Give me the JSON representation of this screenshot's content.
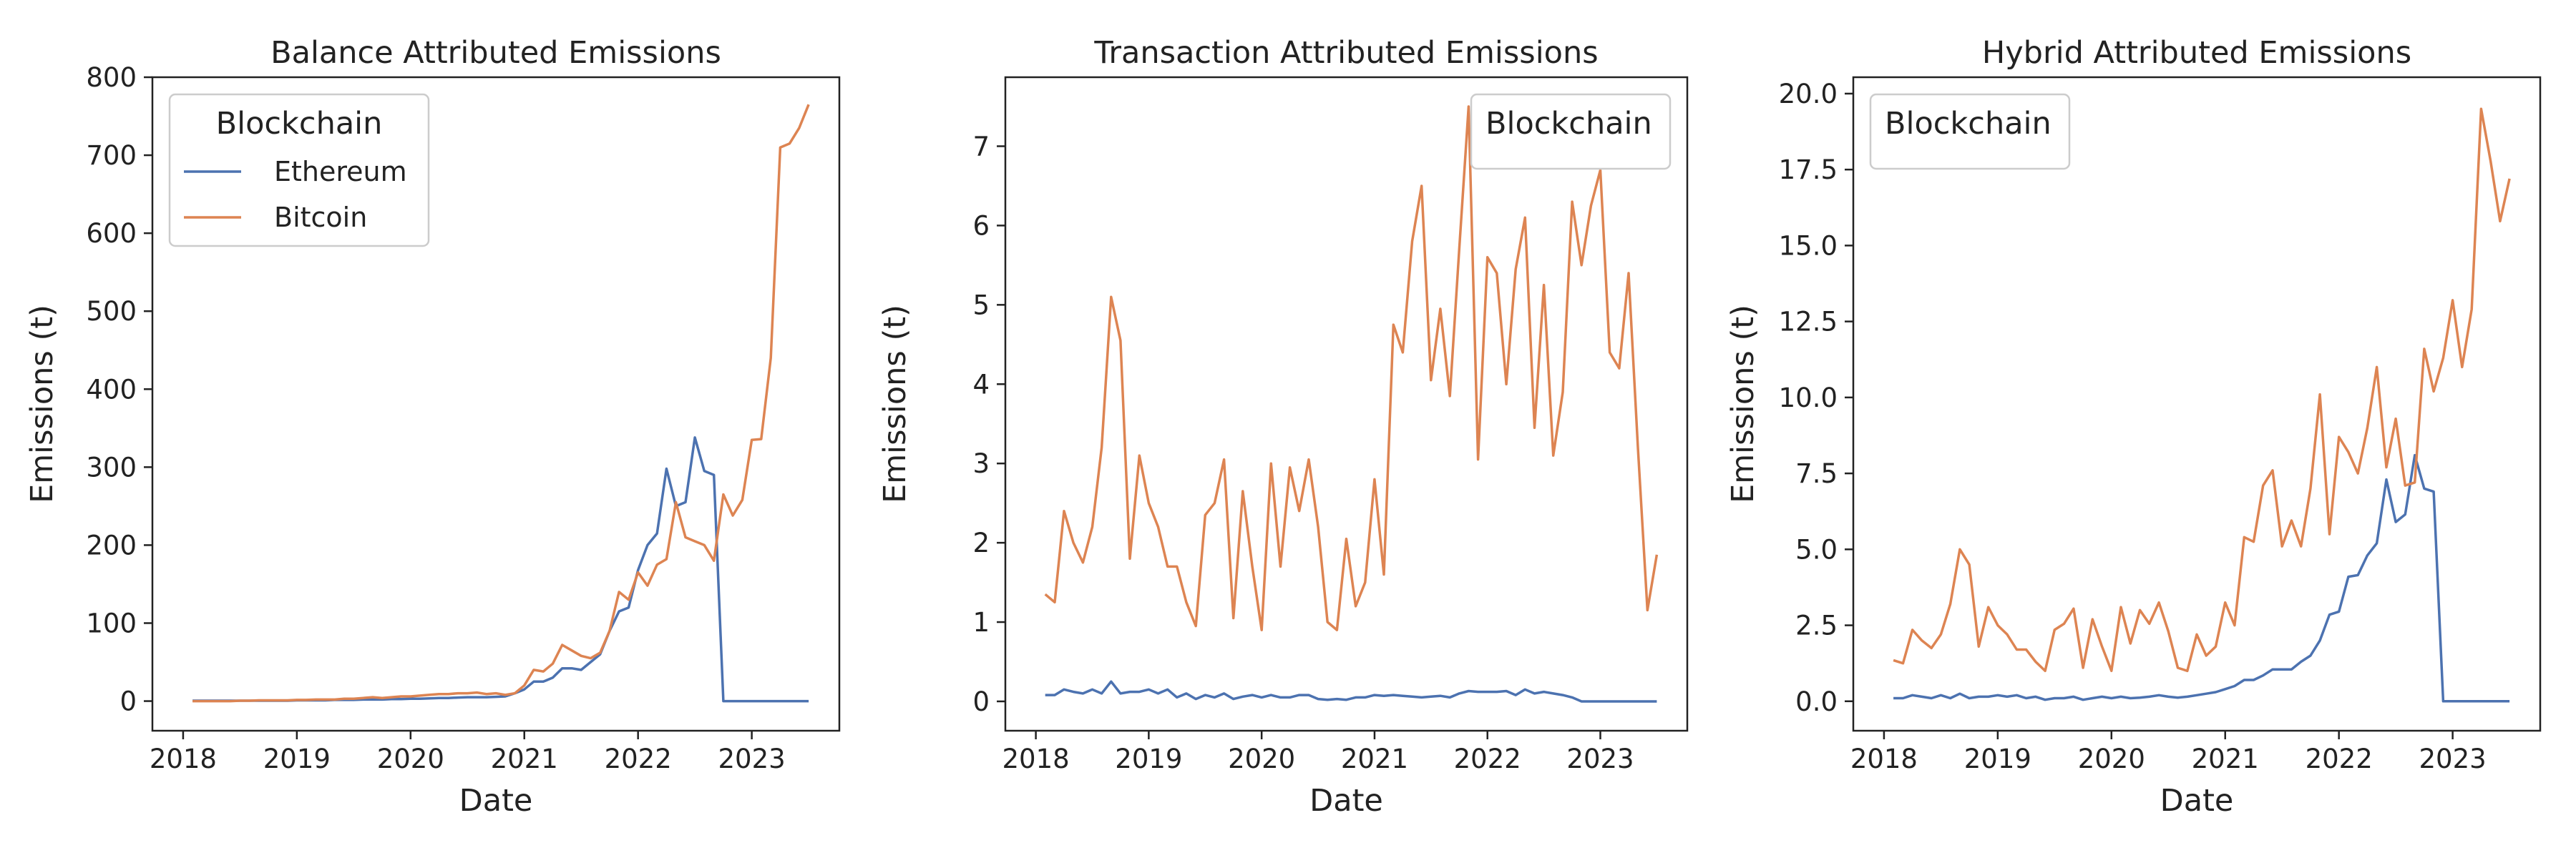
{
  "chart_data": [
    {
      "type": "line",
      "title": "Balance Attributed Emissions",
      "xlabel": "Date",
      "ylabel": "Emissions (t)",
      "x": [
        2018.083,
        2018.167,
        2018.25,
        2018.333,
        2018.417,
        2018.5,
        2018.583,
        2018.667,
        2018.75,
        2018.833,
        2018.917,
        2019,
        2019.083,
        2019.167,
        2019.25,
        2019.333,
        2019.417,
        2019.5,
        2019.583,
        2019.667,
        2019.75,
        2019.833,
        2019.917,
        2020,
        2020.083,
        2020.167,
        2020.25,
        2020.333,
        2020.417,
        2020.5,
        2020.583,
        2020.667,
        2020.75,
        2020.833,
        2020.917,
        2021,
        2021.083,
        2021.167,
        2021.25,
        2021.333,
        2021.417,
        2021.5,
        2021.583,
        2021.667,
        2021.75,
        2021.833,
        2021.917,
        2022,
        2022.083,
        2022.167,
        2022.25,
        2022.333,
        2022.417,
        2022.5,
        2022.583,
        2022.667,
        2022.75,
        2022.833,
        2022.917,
        2023,
        2023.083,
        2023.167,
        2023.25,
        2023.333,
        2023.417,
        2023.5
      ],
      "series": [
        {
          "name": "Ethereum",
          "color": "#4c72b0",
          "values": [
            0.5,
            0.5,
            0.5,
            0.5,
            0.5,
            0.5,
            0.5,
            0.5,
            0.5,
            0.5,
            0.5,
            1,
            1,
            1,
            1,
            1.5,
            1.5,
            1.5,
            2,
            2,
            2,
            2.5,
            2.5,
            3,
            3,
            3.5,
            4,
            4,
            4.5,
            5,
            5,
            5,
            5.5,
            6,
            10,
            15,
            25,
            25,
            30,
            42,
            42,
            40,
            50,
            60,
            90,
            115,
            120,
            168,
            200,
            215,
            298,
            250,
            255,
            338,
            295,
            290,
            0,
            0,
            0,
            0,
            0,
            0,
            0,
            0,
            0,
            0
          ]
        },
        {
          "name": "Bitcoin",
          "color": "#dd8452",
          "values": [
            0,
            0,
            0,
            0,
            0,
            0.5,
            0.5,
            1,
            1,
            1,
            1,
            1.5,
            1.5,
            2,
            2,
            2,
            3,
            3,
            4,
            5,
            4,
            5,
            6,
            6,
            7,
            8,
            9,
            9,
            10,
            10,
            11,
            9,
            10,
            8,
            10,
            20,
            40,
            38,
            48,
            72,
            65,
            58,
            55,
            62,
            90,
            140,
            130,
            165,
            148,
            175,
            182,
            255,
            210,
            205,
            200,
            180,
            265,
            238,
            258,
            335,
            336,
            440,
            710,
            715,
            735,
            765
          ]
        }
      ],
      "xlim": [
        2017.73,
        2023.77
      ],
      "xticks": [
        2018,
        2019,
        2020,
        2021,
        2022,
        2023
      ],
      "ylim": [
        -38,
        800
      ],
      "yticks": [
        0,
        100,
        200,
        300,
        400,
        500,
        600,
        700,
        800
      ],
      "legend": {
        "title": "Blockchain",
        "loc": "upper left",
        "show_entries": true
      }
    },
    {
      "type": "line",
      "title": "Transaction Attributed Emissions",
      "xlabel": "Date",
      "ylabel": "Emissions (t)",
      "x": [
        2018.083,
        2018.167,
        2018.25,
        2018.333,
        2018.417,
        2018.5,
        2018.583,
        2018.667,
        2018.75,
        2018.833,
        2018.917,
        2019,
        2019.083,
        2019.167,
        2019.25,
        2019.333,
        2019.417,
        2019.5,
        2019.583,
        2019.667,
        2019.75,
        2019.833,
        2019.917,
        2020,
        2020.083,
        2020.167,
        2020.25,
        2020.333,
        2020.417,
        2020.5,
        2020.583,
        2020.667,
        2020.75,
        2020.833,
        2020.917,
        2021,
        2021.083,
        2021.167,
        2021.25,
        2021.333,
        2021.417,
        2021.5,
        2021.583,
        2021.667,
        2021.75,
        2021.833,
        2021.917,
        2022,
        2022.083,
        2022.167,
        2022.25,
        2022.333,
        2022.417,
        2022.5,
        2022.583,
        2022.667,
        2022.75,
        2022.833,
        2022.917,
        2023,
        2023.083,
        2023.167,
        2023.25,
        2023.333,
        2023.417,
        2023.5
      ],
      "series": [
        {
          "name": "Ethereum",
          "color": "#4c72b0",
          "values": [
            0.08,
            0.08,
            0.15,
            0.12,
            0.1,
            0.15,
            0.1,
            0.25,
            0.1,
            0.12,
            0.12,
            0.15,
            0.1,
            0.15,
            0.05,
            0.1,
            0.03,
            0.08,
            0.05,
            0.1,
            0.03,
            0.06,
            0.08,
            0.05,
            0.08,
            0.05,
            0.05,
            0.08,
            0.08,
            0.03,
            0.02,
            0.03,
            0.02,
            0.05,
            0.05,
            0.08,
            0.07,
            0.08,
            0.07,
            0.06,
            0.05,
            0.06,
            0.07,
            0.05,
            0.1,
            0.13,
            0.12,
            0.12,
            0.12,
            0.13,
            0.08,
            0.15,
            0.1,
            0.12,
            0.1,
            0.08,
            0.05,
            0,
            0,
            0,
            0,
            0,
            0,
            0,
            0,
            0
          ]
        },
        {
          "name": "Bitcoin",
          "color": "#dd8452",
          "values": [
            1.35,
            1.25,
            2.4,
            2.0,
            1.75,
            2.2,
            3.2,
            5.1,
            4.55,
            1.8,
            3.1,
            2.5,
            2.2,
            1.7,
            1.7,
            1.25,
            0.95,
            2.35,
            2.5,
            3.05,
            1.05,
            2.65,
            1.7,
            0.9,
            3.0,
            1.7,
            2.95,
            2.4,
            3.05,
            2.2,
            1.0,
            0.9,
            2.05,
            1.2,
            1.5,
            2.8,
            1.6,
            4.75,
            4.4,
            5.8,
            6.5,
            4.05,
            4.95,
            3.85,
            5.7,
            7.5,
            3.05,
            5.6,
            5.4,
            4.0,
            5.45,
            6.1,
            3.45,
            5.25,
            3.1,
            3.9,
            6.3,
            5.5,
            6.25,
            6.7,
            4.4,
            4.2,
            5.4,
            3.2,
            1.15,
            1.85
          ]
        }
      ],
      "xlim": [
        2017.73,
        2023.77
      ],
      "xticks": [
        2018,
        2019,
        2020,
        2021,
        2022,
        2023
      ],
      "ylim": [
        -0.37,
        7.87
      ],
      "yticks": [
        0,
        1,
        2,
        3,
        4,
        5,
        6,
        7
      ],
      "legend": {
        "title": "Blockchain",
        "loc": "upper right",
        "show_entries": false
      }
    },
    {
      "type": "line",
      "title": "Hybrid Attributed Emissions",
      "xlabel": "Date",
      "ylabel": "Emissions (t)",
      "x": [
        2018.083,
        2018.167,
        2018.25,
        2018.333,
        2018.417,
        2018.5,
        2018.583,
        2018.667,
        2018.75,
        2018.833,
        2018.917,
        2019,
        2019.083,
        2019.167,
        2019.25,
        2019.333,
        2019.417,
        2019.5,
        2019.583,
        2019.667,
        2019.75,
        2019.833,
        2019.917,
        2020,
        2020.083,
        2020.167,
        2020.25,
        2020.333,
        2020.417,
        2020.5,
        2020.583,
        2020.667,
        2020.75,
        2020.833,
        2020.917,
        2021,
        2021.083,
        2021.167,
        2021.25,
        2021.333,
        2021.417,
        2021.5,
        2021.583,
        2021.667,
        2021.75,
        2021.833,
        2021.917,
        2022,
        2022.083,
        2022.167,
        2022.25,
        2022.333,
        2022.417,
        2022.5,
        2022.583,
        2022.667,
        2022.75,
        2022.833,
        2022.917,
        2023,
        2023.083,
        2023.167,
        2023.25,
        2023.333,
        2023.417,
        2023.5
      ],
      "series": [
        {
          "name": "Ethereum",
          "color": "#4c72b0",
          "values": [
            0.1,
            0.1,
            0.2,
            0.15,
            0.1,
            0.2,
            0.1,
            0.25,
            0.1,
            0.15,
            0.15,
            0.2,
            0.15,
            0.2,
            0.1,
            0.15,
            0.05,
            0.1,
            0.1,
            0.15,
            0.05,
            0.1,
            0.15,
            0.1,
            0.15,
            0.1,
            0.12,
            0.15,
            0.2,
            0.15,
            0.12,
            0.15,
            0.2,
            0.25,
            0.3,
            0.4,
            0.5,
            0.7,
            0.7,
            0.85,
            1.05,
            1.05,
            1.05,
            1.3,
            1.5,
            2.0,
            2.85,
            2.95,
            4.1,
            4.15,
            4.8,
            5.2,
            7.3,
            5.9,
            6.15,
            8.1,
            7.0,
            6.9,
            0,
            0,
            0,
            0,
            0,
            0,
            0,
            0
          ]
        },
        {
          "name": "Bitcoin",
          "color": "#dd8452",
          "values": [
            1.35,
            1.25,
            2.35,
            2.0,
            1.75,
            2.2,
            3.2,
            5.0,
            4.5,
            1.8,
            3.1,
            2.5,
            2.2,
            1.7,
            1.7,
            1.3,
            1.0,
            2.35,
            2.55,
            3.05,
            1.1,
            2.7,
            1.8,
            1.0,
            3.1,
            1.9,
            3.0,
            2.55,
            3.25,
            2.3,
            1.1,
            1.0,
            2.2,
            1.5,
            1.8,
            3.25,
            2.5,
            5.4,
            5.25,
            7.1,
            7.6,
            5.1,
            5.95,
            5.1,
            7.0,
            10.1,
            5.5,
            8.7,
            8.2,
            7.5,
            9.0,
            11.0,
            7.7,
            9.3,
            7.1,
            7.2,
            11.6,
            10.2,
            11.3,
            13.2,
            11.0,
            12.9,
            19.5,
            17.8,
            15.8,
            17.2
          ]
        }
      ],
      "xlim": [
        2017.73,
        2023.77
      ],
      "xticks": [
        2018,
        2019,
        2020,
        2021,
        2022,
        2023
      ],
      "ylim": [
        -0.97,
        20.54
      ],
      "yticks": [
        {
          "value": 0,
          "label": "0.0"
        },
        2.5,
        {
          "value": 5,
          "label": "5.0"
        },
        7.5,
        {
          "value": 10,
          "label": "10.0"
        },
        12.5,
        {
          "value": 15,
          "label": "15.0"
        },
        17.5,
        {
          "value": 20,
          "label": "20.0"
        }
      ],
      "legend": {
        "title": "Blockchain",
        "loc": "upper left",
        "show_entries": false
      }
    }
  ]
}
